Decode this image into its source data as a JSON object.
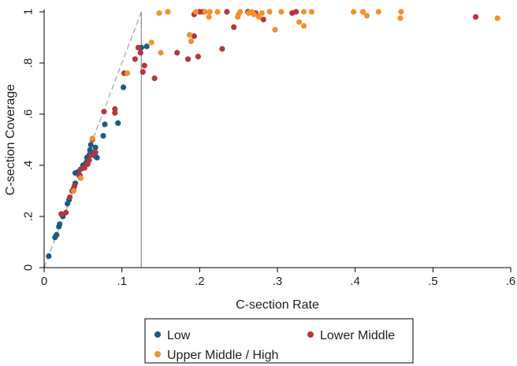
{
  "chart_data": {
    "type": "scatter",
    "title": "",
    "xlabel": "C-section Rate",
    "ylabel": "C-section Coverage",
    "xlim": [
      0,
      0.6
    ],
    "ylim": [
      0,
      1
    ],
    "x_ticks": [
      {
        "value": 0,
        "label": "0"
      },
      {
        "value": 0.1,
        "label": ".1"
      },
      {
        "value": 0.2,
        "label": ".2"
      },
      {
        "value": 0.3,
        "label": ".3"
      },
      {
        "value": 0.4,
        "label": ".4"
      },
      {
        "value": 0.5,
        "label": ".5"
      },
      {
        "value": 0.6,
        "label": ".6"
      }
    ],
    "y_ticks": [
      {
        "value": 0,
        "label": "0"
      },
      {
        "value": 0.2,
        "label": ".2"
      },
      {
        "value": 0.4,
        "label": ".4"
      },
      {
        "value": 0.6,
        "label": ".6"
      },
      {
        "value": 0.8,
        "label": ".8"
      },
      {
        "value": 1,
        "label": "1"
      }
    ],
    "grid": false,
    "reference_lines": {
      "diagonal": {
        "x": [
          0,
          0.125
        ],
        "y": [
          0,
          1
        ],
        "color": "#a8a8a8",
        "style": "dashed"
      },
      "vertical": {
        "x": 0.125,
        "y": [
          0,
          1
        ],
        "color": "#999999",
        "style": "solid"
      }
    },
    "legend_position": "bottom",
    "series": [
      {
        "name": "Low",
        "color": "#1a5c85",
        "points": [
          [
            0.006,
            0.045
          ],
          [
            0.014,
            0.118
          ],
          [
            0.016,
            0.128
          ],
          [
            0.019,
            0.16
          ],
          [
            0.02,
            0.17
          ],
          [
            0.024,
            0.2
          ],
          [
            0.03,
            0.25
          ],
          [
            0.032,
            0.265
          ],
          [
            0.038,
            0.31
          ],
          [
            0.04,
            0.33
          ],
          [
            0.04,
            0.37
          ],
          [
            0.044,
            0.375
          ],
          [
            0.046,
            0.36
          ],
          [
            0.05,
            0.4
          ],
          [
            0.054,
            0.41
          ],
          [
            0.055,
            0.43
          ],
          [
            0.057,
            0.42
          ],
          [
            0.058,
            0.44
          ],
          [
            0.059,
            0.46
          ],
          [
            0.06,
            0.48
          ],
          [
            0.064,
            0.45
          ],
          [
            0.066,
            0.435
          ],
          [
            0.066,
            0.47
          ],
          [
            0.068,
            0.43
          ],
          [
            0.076,
            0.515
          ],
          [
            0.078,
            0.56
          ],
          [
            0.095,
            0.565
          ],
          [
            0.102,
            0.705
          ],
          [
            0.125,
            0.86
          ],
          [
            0.132,
            0.865
          ],
          [
            0.267,
            0.998
          ]
        ]
      },
      {
        "name": "Lower Middle",
        "color": "#b7353d",
        "points": [
          [
            0.022,
            0.21
          ],
          [
            0.028,
            0.215
          ],
          [
            0.033,
            0.275
          ],
          [
            0.036,
            0.3
          ],
          [
            0.039,
            0.32
          ],
          [
            0.045,
            0.36
          ],
          [
            0.047,
            0.385
          ],
          [
            0.052,
            0.39
          ],
          [
            0.056,
            0.405
          ],
          [
            0.058,
            0.42
          ],
          [
            0.061,
            0.44
          ],
          [
            0.062,
            0.5
          ],
          [
            0.066,
            0.45
          ],
          [
            0.077,
            0.61
          ],
          [
            0.091,
            0.605
          ],
          [
            0.091,
            0.62
          ],
          [
            0.103,
            0.76
          ],
          [
            0.117,
            0.815
          ],
          [
            0.121,
            0.86
          ],
          [
            0.124,
            0.84
          ],
          [
            0.127,
            0.765
          ],
          [
            0.129,
            0.79
          ],
          [
            0.142,
            0.74
          ],
          [
            0.171,
            0.84
          ],
          [
            0.185,
            0.815
          ],
          [
            0.193,
            0.905
          ],
          [
            0.193,
            0.99
          ],
          [
            0.198,
            0.825
          ],
          [
            0.2,
            1.0
          ],
          [
            0.204,
            1.0
          ],
          [
            0.229,
            0.855
          ],
          [
            0.235,
            1.0
          ],
          [
            0.244,
            0.94
          ],
          [
            0.262,
            1.0
          ],
          [
            0.272,
            0.995
          ],
          [
            0.282,
            0.97
          ],
          [
            0.319,
            0.995
          ],
          [
            0.324,
            1.0
          ],
          [
            0.555,
            0.98
          ]
        ]
      },
      {
        "name": "Upper Middle / High",
        "color": "#f2912f",
        "points": [
          [
            0.038,
            0.3
          ],
          [
            0.047,
            0.35
          ],
          [
            0.062,
            0.505
          ],
          [
            0.107,
            0.76
          ],
          [
            0.138,
            0.88
          ],
          [
            0.148,
            0.995
          ],
          [
            0.15,
            0.84
          ],
          [
            0.159,
            1.0
          ],
          [
            0.187,
            0.91
          ],
          [
            0.189,
            0.885
          ],
          [
            0.195,
            1.0
          ],
          [
            0.207,
            1.0
          ],
          [
            0.212,
            0.98
          ],
          [
            0.213,
            1.0
          ],
          [
            0.223,
            1.0
          ],
          [
            0.249,
            0.98
          ],
          [
            0.25,
            0.99
          ],
          [
            0.252,
            1.0
          ],
          [
            0.263,
            0.995
          ],
          [
            0.267,
            1.0
          ],
          [
            0.27,
            0.99
          ],
          [
            0.276,
            0.98
          ],
          [
            0.28,
            0.995
          ],
          [
            0.29,
            1.0
          ],
          [
            0.297,
            0.93
          ],
          [
            0.305,
            1.0
          ],
          [
            0.328,
            0.96
          ],
          [
            0.334,
            0.945
          ],
          [
            0.334,
            1.0
          ],
          [
            0.344,
            1.0
          ],
          [
            0.398,
            1.0
          ],
          [
            0.41,
            1.0
          ],
          [
            0.415,
            0.985
          ],
          [
            0.43,
            1.0
          ],
          [
            0.458,
            0.975
          ],
          [
            0.459,
            1.0
          ],
          [
            0.583,
            0.975
          ]
        ]
      }
    ]
  }
}
